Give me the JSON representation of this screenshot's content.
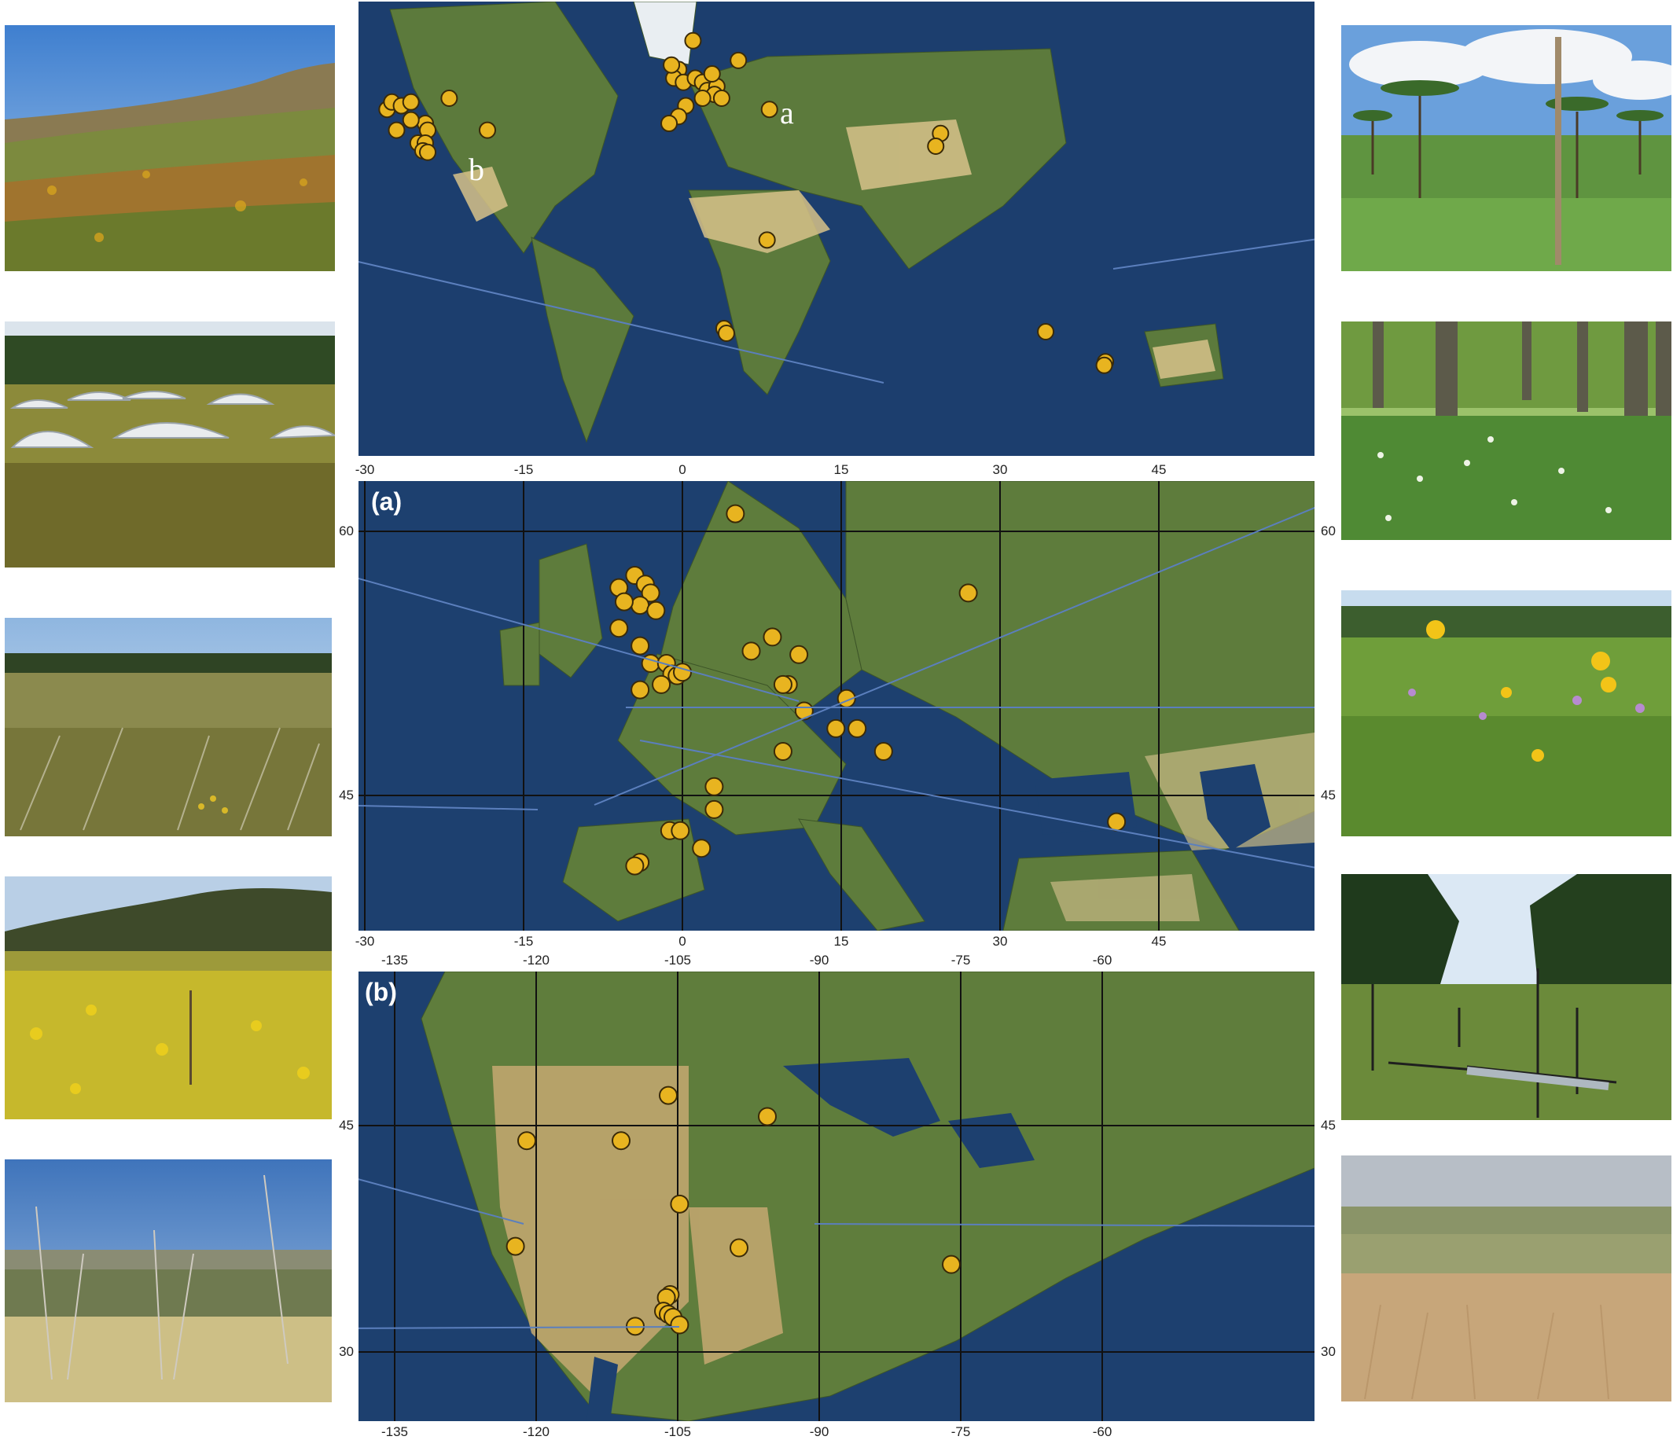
{
  "figure": {
    "panel_a_label": "(a)",
    "panel_b_label": "(b)",
    "world_label_a": "a",
    "world_label_b": "b"
  },
  "colors": {
    "site_marker_fill": "#e8b420",
    "site_marker_stroke": "#3a2a08",
    "leader_line": "#5b7fbd",
    "ocean": "#1c3e6e",
    "land": "#5c7a3c"
  },
  "world_map": {
    "sites": [
      {
        "lon": -151,
        "lat": 61
      },
      {
        "lon": -149,
        "lat": 64.5
      },
      {
        "lon": -122,
        "lat": 44
      },
      {
        "lon": -120,
        "lat": 46
      },
      {
        "lon": -116,
        "lat": 45
      },
      {
        "lon": -112,
        "lat": 46
      },
      {
        "lon": -106,
        "lat": 40
      },
      {
        "lon": -105,
        "lat": 38
      },
      {
        "lon": -109,
        "lat": 34
      },
      {
        "lon": -106,
        "lat": 34
      },
      {
        "lon": -107,
        "lat": 31.5
      },
      {
        "lon": -105,
        "lat": 31
      },
      {
        "lon": -96,
        "lat": 47
      },
      {
        "lon": -80,
        "lat": 38
      },
      {
        "lon": -118,
        "lat": 38
      },
      {
        "lon": -112,
        "lat": 41
      },
      {
        "lon": 0,
        "lat": 54
      },
      {
        "lon": -2,
        "lat": 52
      },
      {
        "lon": 2,
        "lat": 51
      },
      {
        "lon": -3,
        "lat": 55
      },
      {
        "lon": 7,
        "lat": 52
      },
      {
        "lon": 10,
        "lat": 51
      },
      {
        "lon": 12,
        "lat": 49
      },
      {
        "lon": 16,
        "lat": 50
      },
      {
        "lon": 15,
        "lat": 48
      },
      {
        "lon": 18,
        "lat": 47
      },
      {
        "lon": 3,
        "lat": 45
      },
      {
        "lon": 0,
        "lat": 42
      },
      {
        "lon": -4,
        "lat": 40
      },
      {
        "lon": 10,
        "lat": 47
      },
      {
        "lon": 6,
        "lat": 60
      },
      {
        "lon": 25,
        "lat": 56
      },
      {
        "lon": 38,
        "lat": 44
      },
      {
        "lon": 14,
        "lat": 53
      },
      {
        "lon": 103,
        "lat": 37
      },
      {
        "lon": 101,
        "lat": 33
      },
      {
        "lon": 37,
        "lat": -1
      },
      {
        "lon": 19,
        "lat": -33
      },
      {
        "lon": 20,
        "lat": -34.5
      },
      {
        "lon": 147,
        "lat": -34
      },
      {
        "lon": 172,
        "lat": -43
      },
      {
        "lon": 171.5,
        "lat": -44
      }
    ]
  },
  "europe_map": {
    "x_ticks": [
      "-30",
      "-15",
      "0",
      "15",
      "30",
      "45"
    ],
    "y_ticks": [
      "60",
      "45"
    ],
    "x_tick_values": [
      -30,
      -15,
      0,
      15,
      30,
      45
    ],
    "y_tick_values": [
      60,
      45
    ],
    "sites": [
      {
        "lon": 5,
        "lat": 61
      },
      {
        "lon": -6,
        "lat": 56.8
      },
      {
        "lon": -4.5,
        "lat": 57.5
      },
      {
        "lon": -3.5,
        "lat": 57
      },
      {
        "lon": -3,
        "lat": 56.5
      },
      {
        "lon": -4,
        "lat": 55.8
      },
      {
        "lon": -5.5,
        "lat": 56
      },
      {
        "lon": -2.5,
        "lat": 55.5
      },
      {
        "lon": -6,
        "lat": 54.5
      },
      {
        "lon": -4,
        "lat": 53.5
      },
      {
        "lon": -3,
        "lat": 52.5
      },
      {
        "lon": -1.5,
        "lat": 52.5
      },
      {
        "lon": -1,
        "lat": 51.9
      },
      {
        "lon": -0.5,
        "lat": 51.8
      },
      {
        "lon": 0,
        "lat": 52
      },
      {
        "lon": -2,
        "lat": 51.3
      },
      {
        "lon": -4,
        "lat": 51
      },
      {
        "lon": 8.5,
        "lat": 54
      },
      {
        "lon": 6.5,
        "lat": 53.2
      },
      {
        "lon": 11,
        "lat": 53
      },
      {
        "lon": 10,
        "lat": 51.3
      },
      {
        "lon": 9.5,
        "lat": 51.3
      },
      {
        "lon": 11.5,
        "lat": 49.8
      },
      {
        "lon": 15.5,
        "lat": 50.5
      },
      {
        "lon": 14.5,
        "lat": 48.8
      },
      {
        "lon": 16.5,
        "lat": 48.8
      },
      {
        "lon": 9.5,
        "lat": 47.5
      },
      {
        "lon": 19,
        "lat": 47.5
      },
      {
        "lon": 3,
        "lat": 45.5
      },
      {
        "lon": 3,
        "lat": 44.2
      },
      {
        "lon": -1.2,
        "lat": 43
      },
      {
        "lon": -0.2,
        "lat": 43
      },
      {
        "lon": 1.8,
        "lat": 42
      },
      {
        "lon": -4,
        "lat": 41.2
      },
      {
        "lon": -4.5,
        "lat": 41
      },
      {
        "lon": 27,
        "lat": 56.5
      },
      {
        "lon": 41,
        "lat": 43.5
      }
    ]
  },
  "namerica_map": {
    "x_ticks": [
      "-135",
      "-120",
      "-105",
      "-90",
      "-75",
      "-60"
    ],
    "y_ticks": [
      "45",
      "30"
    ],
    "x_tick_values": [
      -135,
      -120,
      -105,
      -90,
      -75,
      -60
    ],
    "y_tick_values": [
      45,
      30
    ],
    "sites": [
      {
        "lon": -121,
        "lat": 44
      },
      {
        "lon": -111,
        "lat": 44
      },
      {
        "lon": -106,
        "lat": 47
      },
      {
        "lon": -95.5,
        "lat": 45.6
      },
      {
        "lon": -104.8,
        "lat": 39.8
      },
      {
        "lon": -98.5,
        "lat": 36.9
      },
      {
        "lon": -76,
        "lat": 35.8
      },
      {
        "lon": -122.2,
        "lat": 37
      },
      {
        "lon": -105.8,
        "lat": 33.8
      },
      {
        "lon": -106.2,
        "lat": 33.6
      },
      {
        "lon": -106.5,
        "lat": 32.7
      },
      {
        "lon": -106,
        "lat": 32.5
      },
      {
        "lon": -105.5,
        "lat": 32.3
      },
      {
        "lon": -104.8,
        "lat": 31.8
      },
      {
        "lon": -109.5,
        "lat": 31.7
      }
    ]
  },
  "photos": [
    {
      "name": "photo-shrubland-south-africa",
      "scene": "fynbos"
    },
    {
      "name": "photo-rainout-shelters",
      "scene": "shelters"
    },
    {
      "name": "photo-feather-grass-steppe",
      "scene": "steppe"
    },
    {
      "name": "photo-yellow-wildflower-meadow",
      "scene": "yellow"
    },
    {
      "name": "photo-semi-arid-grassland",
      "scene": "arid"
    },
    {
      "name": "photo-acacia-savanna",
      "scene": "savanna"
    },
    {
      "name": "photo-beech-forest-floor",
      "scene": "forest"
    },
    {
      "name": "photo-flowering-meadow",
      "scene": "meadow"
    },
    {
      "name": "photo-forest-clearing-rainout",
      "scene": "clearing"
    },
    {
      "name": "photo-tallgrass-prairie",
      "scene": "prairie"
    }
  ]
}
